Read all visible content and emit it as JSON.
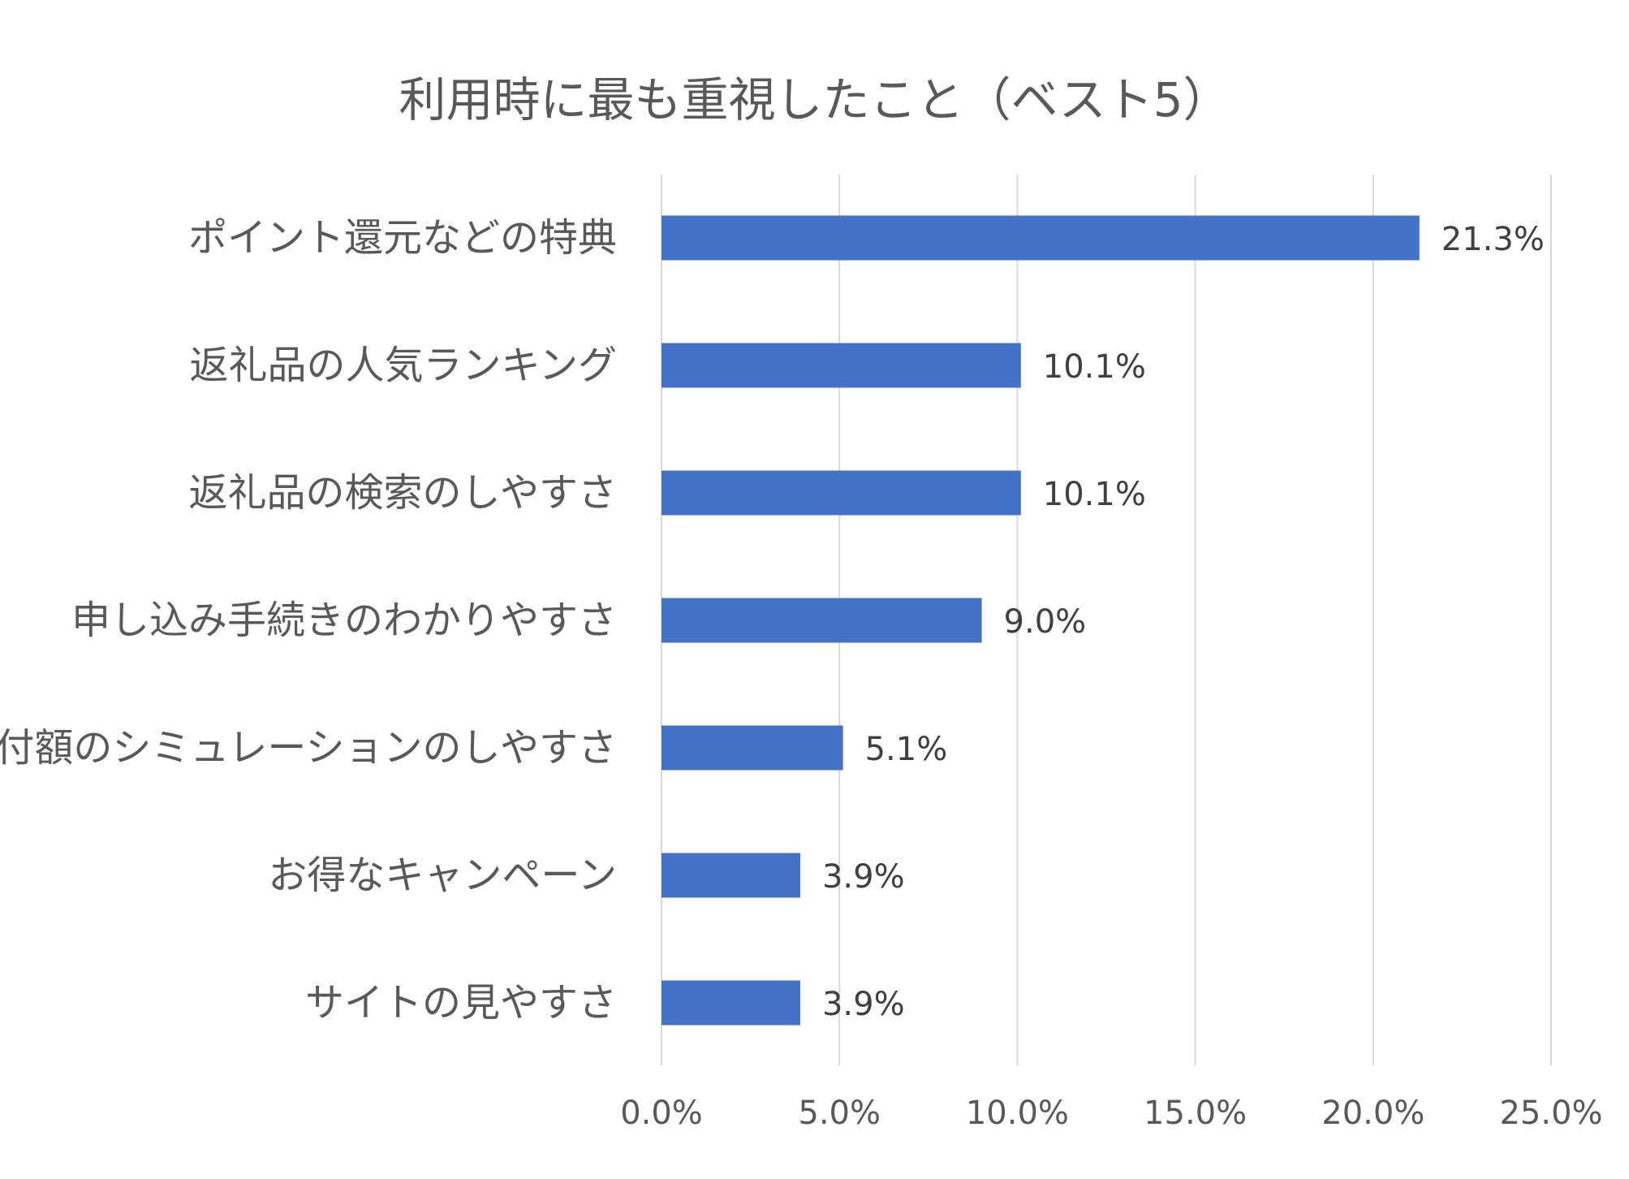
{
  "chart_data": {
    "type": "bar",
    "orientation": "horizontal",
    "title": "利用時に最も重視したこと（ベスト5）",
    "xlabel": "",
    "ylabel": "",
    "xlim": [
      0,
      25
    ],
    "x_ticks": [
      "0.0%",
      "5.0%",
      "10.0%",
      "15.0%",
      "20.0%",
      "25.0%"
    ],
    "grid": true,
    "legend": "none",
    "bar_color": "#4472C4",
    "categories": [
      "ポイント還元などの特典",
      "返礼品の人気ランキング",
      "返礼品の検索のしやすさ",
      "申し込み手続きのわかりやすさ",
      "寄付額のシミュレーションのしやすさ",
      "お得なキャンペーン",
      "サイトの見やすさ"
    ],
    "values": [
      21.3,
      10.1,
      10.1,
      9.0,
      5.1,
      3.9,
      3.9
    ],
    "data_labels": [
      "21.3%",
      "10.1%",
      "10.1%",
      "9.0%",
      "5.1%",
      "3.9%",
      "3.9%"
    ]
  }
}
